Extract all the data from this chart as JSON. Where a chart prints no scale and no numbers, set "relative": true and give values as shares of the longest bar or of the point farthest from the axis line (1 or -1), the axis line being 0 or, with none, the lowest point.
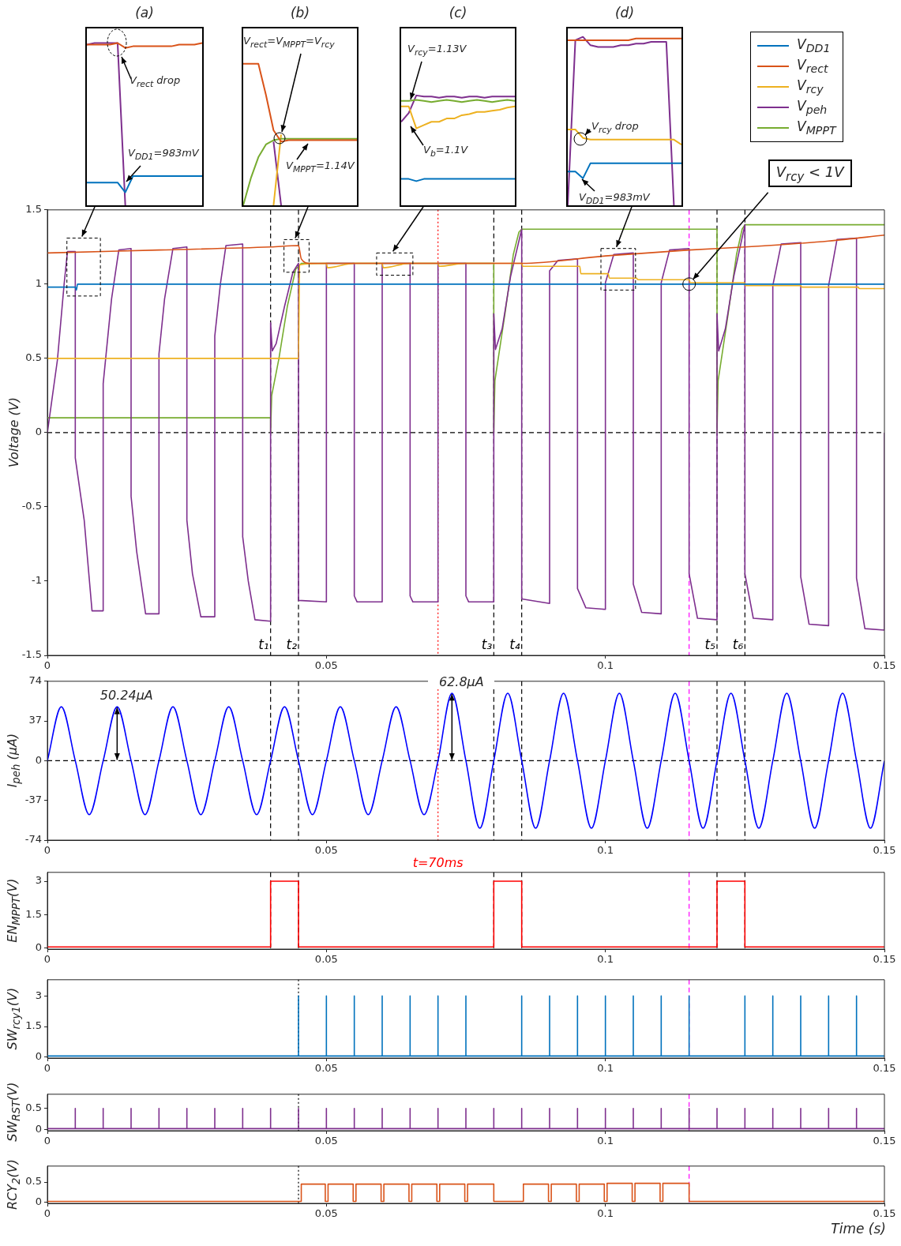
{
  "chart_data": [
    {
      "type": "line",
      "title": "(a)",
      "relative": true,
      "categories": [
        null,
        null,
        null,
        null,
        null,
        null,
        null,
        null,
        null,
        null,
        null,
        null,
        null,
        null,
        null,
        null
      ],
      "series": [
        {
          "color": "#d95319",
          "values": [
            0.99,
            0.99,
            0.99,
            0.99,
            1,
            0.97,
            0.98,
            0.98,
            0.98,
            0.98,
            0.98,
            0.98,
            0.99,
            0.99,
            0.99,
            1
          ]
        },
        {
          "color": "#0072bd",
          "values": [
            0.14,
            0.14,
            0.14,
            0.14,
            0.14,
            0.08,
            0.18,
            0.18,
            0.18,
            0.18,
            0.18,
            0.18,
            0.18,
            0.18,
            0.18,
            0.18
          ]
        },
        {
          "color": "#7e2f8e",
          "values": [
            0.99,
            1,
            1,
            1,
            1,
            0,
            null,
            null,
            null,
            null,
            null,
            null,
            null,
            null,
            null,
            null
          ]
        }
      ],
      "annotations": [
        "V$_{rect}$ drop",
        "V$_{DD1}$=983mV"
      ]
    },
    {
      "type": "line",
      "title": "(b)",
      "relative": true,
      "categories": [
        null,
        null,
        null,
        null,
        null,
        null,
        null,
        null,
        null,
        null,
        null,
        null,
        null,
        null,
        null,
        null
      ],
      "series": [
        {
          "color": "#d95319",
          "values": [
            1,
            1,
            1,
            0.78,
            0.53,
            0.45,
            0.46,
            0.46,
            0.46,
            0.46,
            0.46,
            0.46,
            0.46,
            0.46,
            0.46,
            0.46
          ]
        },
        {
          "color": "#77ac30",
          "values": [
            0,
            0.19,
            0.34,
            0.43,
            0.46,
            0.47,
            0.47,
            0.47,
            0.47,
            0.47,
            0.47,
            0.47,
            0.47,
            0.47,
            0.47,
            0.47
          ]
        },
        {
          "color": "#edb120",
          "values": [
            null,
            null,
            null,
            null,
            0,
            0.5,
            null,
            null,
            null,
            null,
            null,
            null,
            null,
            null,
            null,
            null
          ]
        },
        {
          "color": "#7e2f8e",
          "values": [
            null,
            null,
            null,
            null,
            0.45,
            0,
            null,
            null,
            null,
            null,
            null,
            null,
            null,
            null,
            null,
            null
          ]
        }
      ],
      "annotations": [
        "V$_{rect}$=V$_{MPPT}$=V$_{rcy}$",
        "V$_{MPPT}$=1.14V"
      ]
    },
    {
      "type": "line",
      "title": "(c)",
      "relative": true,
      "categories": [
        null,
        null,
        null,
        null,
        null,
        null,
        null,
        null,
        null,
        null,
        null,
        null,
        null,
        null,
        null,
        null
      ],
      "series": [
        {
          "color": "#0072bd",
          "values": [
            0.24,
            0.24,
            0.22,
            0.24,
            0.24,
            0.24,
            0.24,
            0.24,
            0.24,
            0.24,
            0.24,
            0.24,
            0.24,
            0.24,
            0.24,
            0.24
          ]
        },
        {
          "color": "#edb120",
          "values": [
            0.9,
            0.9,
            0.7,
            0.73,
            0.76,
            0.76,
            0.79,
            0.79,
            0.82,
            0.83,
            0.85,
            0.85,
            0.86,
            0.87,
            0.89,
            0.9
          ]
        },
        {
          "color": "#77ac30",
          "values": [
            0.95,
            0.95,
            0.96,
            0.95,
            0.94,
            0.95,
            0.96,
            0.95,
            0.94,
            0.95,
            0.96,
            0.95,
            0.94,
            0.95,
            0.96,
            0.95
          ]
        },
        {
          "color": "#7e2f8e",
          "values": [
            0.76,
            0.84,
            1,
            0.99,
            0.99,
            0.98,
            0.99,
            0.99,
            0.98,
            0.99,
            0.99,
            0.98,
            0.99,
            0.99,
            0.99,
            0.99
          ]
        }
      ],
      "annotations": [
        "V$_{rcy}$=1.13V",
        "V$_{b}$=1.1V"
      ]
    },
    {
      "type": "line",
      "title": "(d)",
      "relative": true,
      "categories": [
        null,
        null,
        null,
        null,
        null,
        null,
        null,
        null,
        null,
        null,
        null,
        null,
        null,
        null,
        null,
        null
      ],
      "series": [
        {
          "color": "#d95319",
          "values": [
            0.98,
            0.98,
            0.98,
            0.98,
            0.98,
            0.98,
            0.98,
            0.98,
            0.98,
            0.99,
            0.99,
            0.99,
            0.99,
            0.99,
            0.99,
            0.99
          ]
        },
        {
          "color": "#edb120",
          "values": [
            0.45,
            0.45,
            0.4,
            0.39,
            0.39,
            0.39,
            0.39,
            0.39,
            0.39,
            0.39,
            0.39,
            0.39,
            0.39,
            0.39,
            0.39,
            0.36
          ]
        },
        {
          "color": "#0072bd",
          "values": [
            0.2,
            0.2,
            0.16,
            0.25,
            0.25,
            0.25,
            0.25,
            0.25,
            0.25,
            0.25,
            0.25,
            0.25,
            0.25,
            0.25,
            0.25,
            0.25
          ]
        },
        {
          "color": "#7e2f8e",
          "values": [
            0,
            0.98,
            1,
            0.95,
            0.94,
            0.94,
            0.94,
            0.95,
            0.95,
            0.96,
            0.96,
            0.97,
            0.97,
            0.97,
            0,
            null
          ]
        }
      ],
      "annotations": [
        "V$_{rcy}$ drop",
        "V$_{DD1}$=983mV"
      ]
    },
    {
      "type": "line",
      "ylabel": "Voltage (V)",
      "xlim": [
        0,
        0.15
      ],
      "xticks": [
        0,
        0.05,
        0.1,
        0.15
      ],
      "ylim": [
        -1.5,
        1.5
      ],
      "yticks": [
        -1.5,
        -1,
        -0.5,
        0,
        0.5,
        1,
        1.5
      ],
      "legend": "top right",
      "series": [
        {
          "name": "V$_{DD1}$",
          "color": "#0072bd",
          "x": [
            0,
            0.005,
            0.0052,
            0.0054,
            0.15
          ],
          "values": [
            0.98,
            0.98,
            0.96,
            1.0,
            1.0
          ]
        },
        {
          "name": "V$_{rect}$",
          "color": "#d95319",
          "x": [
            0,
            0.02,
            0.04,
            0.045,
            0.0455,
            0.047,
            0.085,
            0.1,
            0.115,
            0.125,
            0.14,
            0.15
          ],
          "values": [
            1.21,
            1.23,
            1.25,
            1.26,
            1.17,
            1.14,
            1.14,
            1.19,
            1.23,
            1.25,
            1.29,
            1.33
          ]
        },
        {
          "name": "V$_{rcy}$",
          "color": "#edb120",
          "x": [
            0,
            0.045,
            0.0452,
            0.05,
            0.0502,
            0.055,
            0.06,
            0.0602,
            0.065,
            0.07,
            0.0702,
            0.075,
            0.08,
            0.085,
            0.0852,
            0.0954,
            0.0956,
            0.1005,
            0.1007,
            0.1056,
            0.1058,
            0.115,
            0.1152,
            0.1249,
            0.1251,
            0.135,
            0.1352,
            0.1453,
            0.1455,
            0.15
          ],
          "values": [
            0.5,
            0.5,
            1.13,
            1.14,
            1.11,
            1.14,
            1.14,
            1.11,
            1.14,
            1.14,
            1.12,
            1.14,
            1.14,
            1.14,
            1.12,
            1.12,
            1.07,
            1.07,
            1.04,
            1.04,
            1.03,
            1.03,
            1.01,
            1.01,
            0.99,
            0.99,
            0.98,
            0.98,
            0.97,
            0.97
          ]
        },
        {
          "name": "V$_{peh}$",
          "color": "#7e2f8e",
          "x": [
            0,
            0.0018,
            0.003,
            0.0036,
            0.005,
            0.005,
            0.0066,
            0.008,
            0.01,
            0.01,
            0.0115,
            0.0128,
            0.015,
            0.015,
            0.016,
            0.0176,
            0.02,
            0.02,
            0.021,
            0.0225,
            0.025,
            0.025,
            0.026,
            0.0275,
            0.03,
            0.03,
            0.031,
            0.032,
            0.035,
            0.035,
            0.036,
            0.0372,
            0.04,
            0.04,
            0.0403,
            0.041,
            0.0425,
            0.044,
            0.045,
            0.045,
            0.05,
            0.05,
            0.055,
            0.055,
            0.0555,
            0.06,
            0.06,
            0.065,
            0.065,
            0.0655,
            0.07,
            0.07,
            0.075,
            0.075,
            0.0755,
            0.08,
            0.08,
            0.0803,
            0.0815,
            0.083,
            0.085,
            0.085,
            0.09,
            0.09,
            0.0915,
            0.095,
            0.095,
            0.0965,
            0.1,
            0.1,
            0.1015,
            0.105,
            0.105,
            0.1065,
            0.11,
            0.11,
            0.1115,
            0.115,
            0.115,
            0.1165,
            0.12,
            0.12,
            0.1203,
            0.1215,
            0.123,
            0.125,
            0.125,
            0.1265,
            0.13,
            0.13,
            0.1315,
            0.135,
            0.135,
            0.1365,
            0.14,
            0.14,
            0.1415,
            0.145,
            0.145,
            0.1465,
            0.15,
            0.15
          ],
          "values": [
            0,
            0.49,
            1.0,
            1.22,
            1.22,
            -0.17,
            -0.59,
            -1.2,
            -1.2,
            0.33,
            0.9,
            1.23,
            1.24,
            -0.43,
            -0.8,
            -1.22,
            -1.22,
            0.53,
            0.9,
            1.24,
            1.25,
            -0.59,
            -0.95,
            -1.24,
            -1.24,
            0.65,
            1.0,
            1.26,
            1.27,
            -0.7,
            -1.0,
            -1.26,
            -1.27,
            0.74,
            0.55,
            0.6,
            0.85,
            1.08,
            1.14,
            -1.13,
            -1.14,
            1.14,
            1.14,
            -1.1,
            -1.14,
            -1.14,
            1.14,
            1.14,
            -1.1,
            -1.14,
            -1.14,
            1.14,
            1.14,
            -1.1,
            -1.14,
            -1.14,
            0.8,
            0.56,
            0.7,
            1.05,
            1.37,
            -1.12,
            -1.15,
            1.09,
            1.16,
            1.17,
            -1.05,
            -1.18,
            -1.19,
            1.01,
            1.2,
            1.21,
            -1.02,
            -1.21,
            -1.22,
            1.01,
            1.23,
            1.24,
            -0.95,
            -1.25,
            -1.26,
            0.8,
            0.55,
            0.7,
            1.05,
            1.4,
            -0.95,
            -1.25,
            -1.26,
            0.99,
            1.27,
            1.28,
            -0.97,
            -1.29,
            -1.3,
            0.99,
            1.3,
            1.31,
            -0.98,
            -1.32,
            -1.33,
            0
          ]
        },
        {
          "name": "V$_{MPPT}$",
          "color": "#77ac30",
          "x": [
            0,
            0.04,
            0.04,
            0.0402,
            0.0415,
            0.043,
            0.0445,
            0.0455,
            0.08,
            0.08,
            0.0802,
            0.082,
            0.0835,
            0.0845,
            0.085,
            0.12,
            0.12,
            0.1202,
            0.122,
            0.1235,
            0.1245,
            0.125,
            0.15
          ],
          "values": [
            0.1,
            0.1,
            0,
            0.25,
            0.5,
            0.85,
            1.1,
            1.14,
            1.14,
            0,
            0.35,
            0.8,
            1.2,
            1.35,
            1.37,
            1.37,
            0,
            0.35,
            0.8,
            1.2,
            1.37,
            1.4,
            1.4
          ]
        }
      ],
      "ref_lines": [
        {
          "axis": "y",
          "value": 0,
          "color": "#000000",
          "line_style": "dashed"
        },
        {
          "axis": "x",
          "value": 0.04,
          "label": "t₁",
          "color": "#000000",
          "line_style": "dashed"
        },
        {
          "axis": "x",
          "value": 0.045,
          "label": "t₂",
          "color": "#000000",
          "line_style": "dashed"
        },
        {
          "axis": "x",
          "value": 0.08,
          "label": "t₃",
          "color": "#000000",
          "line_style": "dashed"
        },
        {
          "axis": "x",
          "value": 0.085,
          "label": "t₄",
          "color": "#000000",
          "line_style": "dashed"
        },
        {
          "axis": "x",
          "value": 0.12,
          "label": "t₅",
          "color": "#000000",
          "line_style": "dashed"
        },
        {
          "axis": "x",
          "value": 0.125,
          "label": "t₆",
          "color": "#000000",
          "line_style": "dashed"
        },
        {
          "axis": "x",
          "value": 0.07,
          "color": "#ff0000",
          "line_style": "dotted"
        },
        {
          "axis": "x",
          "value": 0.115,
          "color": "#ff00ff",
          "line_style": "dashed"
        }
      ],
      "annotations": [
        {
          "text": "V$_{rcy}$ < 1V",
          "x": 0.115,
          "y": 1.0
        }
      ]
    },
    {
      "type": "line",
      "ylabel": "I$_{peh}$ (μA)",
      "xlim": [
        0,
        0.15
      ],
      "xticks": [
        0,
        0.05,
        0.1,
        0.15
      ],
      "ylim": [
        -74,
        74
      ],
      "yticks": [
        -74,
        -37,
        0,
        37,
        74
      ],
      "series": [
        {
          "color": "#0000ff",
          "x": [
            0,
            0.0025,
            0.005,
            0.0075,
            0.01,
            0.0125,
            0.015,
            0.0175,
            0.02,
            0.0225,
            0.025,
            0.0275,
            0.03,
            0.0325,
            0.035,
            0.0375,
            0.04,
            0.0425,
            0.045,
            0.0475,
            0.05,
            0.0525,
            0.055,
            0.0575,
            0.06,
            0.0625,
            0.065,
            0.0675,
            0.07,
            0.0725,
            0.075,
            0.0775,
            0.08,
            0.0825,
            0.085,
            0.0875,
            0.09,
            0.0925,
            0.095,
            0.0975,
            0.1,
            0.1025,
            0.105,
            0.1075,
            0.11,
            0.1125,
            0.115,
            0.1175,
            0.12,
            0.1225,
            0.125,
            0.1275,
            0.13,
            0.1325,
            0.135,
            0.1375,
            0.14,
            0.1425,
            0.145,
            0.1475,
            0.15
          ],
          "values": [
            0,
            50.24,
            0,
            -50.24,
            0,
            50.24,
            0,
            -50.24,
            0,
            50.24,
            0,
            -50.24,
            0,
            50.24,
            0,
            -50.24,
            0,
            50.24,
            0,
            -50.24,
            0,
            50.24,
            0,
            -50.24,
            0,
            50.24,
            0,
            -50.24,
            0,
            62.8,
            0,
            -62.8,
            0,
            62.8,
            0,
            -62.8,
            0,
            62.8,
            0,
            -62.8,
            0,
            62.8,
            0,
            -62.8,
            0,
            62.8,
            0,
            -62.8,
            0,
            62.8,
            0,
            -62.8,
            0,
            62.8,
            0,
            -62.8,
            0,
            62.8,
            0,
            -62.8,
            0
          ]
        }
      ],
      "ref_lines": [
        {
          "axis": "y",
          "value": 0,
          "color": "#000000",
          "line_style": "dashed"
        },
        {
          "axis": "x",
          "value": 0.04,
          "color": "#000000",
          "line_style": "dashed"
        },
        {
          "axis": "x",
          "value": 0.045,
          "color": "#000000",
          "line_style": "dashed"
        },
        {
          "axis": "x",
          "value": 0.08,
          "color": "#000000",
          "line_style": "dashed"
        },
        {
          "axis": "x",
          "value": 0.085,
          "color": "#000000",
          "line_style": "dashed"
        },
        {
          "axis": "x",
          "value": 0.12,
          "color": "#000000",
          "line_style": "dashed"
        },
        {
          "axis": "x",
          "value": 0.125,
          "color": "#000000",
          "line_style": "dashed"
        },
        {
          "axis": "x",
          "value": 0.07,
          "label": "t=70ms",
          "color": "#ff0000",
          "line_style": "dotted"
        },
        {
          "axis": "x",
          "value": 0.115,
          "color": "#ff00ff",
          "line_style": "dashed"
        }
      ],
      "annotations": [
        {
          "text": "50.24μA",
          "x": 0.0125,
          "y": 50.24
        },
        {
          "text": "62.8μA",
          "x": 0.0725,
          "y": 62.8
        }
      ]
    },
    {
      "type": "line",
      "ylabel": "EN$_{MPPT}$(V)",
      "xlim": [
        0,
        0.15
      ],
      "xticks": [
        0,
        0.05,
        0.1,
        0.15
      ],
      "ylim": [
        -0.05,
        3.4
      ],
      "yticks": [
        0,
        1.5,
        3
      ],
      "series": [
        {
          "color": "#ff0000",
          "x": [
            0,
            0.04,
            0.04,
            0.045,
            0.045,
            0.08,
            0.08,
            0.085,
            0.085,
            0.12,
            0.12,
            0.125,
            0.125,
            0.15
          ],
          "values": [
            0.05,
            0.05,
            3,
            3,
            0.05,
            0.05,
            3,
            3,
            0.05,
            0.05,
            3,
            3,
            0.05,
            0.05
          ]
        }
      ],
      "ref_lines": [
        {
          "axis": "x",
          "value": 0.04,
          "color": "#000000",
          "line_style": "dashed"
        },
        {
          "axis": "x",
          "value": 0.045,
          "color": "#000000",
          "line_style": "dashed"
        },
        {
          "axis": "x",
          "value": 0.08,
          "color": "#000000",
          "line_style": "dashed"
        },
        {
          "axis": "x",
          "value": 0.085,
          "color": "#000000",
          "line_style": "dashed"
        },
        {
          "axis": "x",
          "value": 0.12,
          "color": "#000000",
          "line_style": "dashed"
        },
        {
          "axis": "x",
          "value": 0.125,
          "color": "#000000",
          "line_style": "dashed"
        },
        {
          "axis": "x",
          "value": 0.115,
          "color": "#ff00ff",
          "line_style": "dashed"
        }
      ]
    },
    {
      "type": "line",
      "ylabel": "SW$_{rcy1}$(V)",
      "xlim": [
        0,
        0.15
      ],
      "xticks": [
        0,
        0.05,
        0.1,
        0.15
      ],
      "ylim": [
        -0.05,
        3.8
      ],
      "yticks": [
        0,
        1.5,
        3
      ],
      "series": [
        {
          "color": "#0072bd",
          "x": [
            0,
            0.045,
            0.045,
            0.045,
            0.05,
            0.05,
            0.05,
            0.055,
            0.055,
            0.055,
            0.06,
            0.06,
            0.06,
            0.065,
            0.065,
            0.065,
            0.07,
            0.07,
            0.07,
            0.075,
            0.075,
            0.075,
            0.085,
            0.085,
            0.085,
            0.09,
            0.09,
            0.09,
            0.095,
            0.095,
            0.095,
            0.1,
            0.1,
            0.1,
            0.105,
            0.105,
            0.105,
            0.11,
            0.11,
            0.11,
            0.115,
            0.115,
            0.115,
            0.125,
            0.125,
            0.125,
            0.13,
            0.13,
            0.13,
            0.135,
            0.135,
            0.135,
            0.14,
            0.14,
            0.14,
            0.145,
            0.145,
            0.145,
            0.15
          ],
          "values": [
            0.05,
            0.05,
            3,
            0.05,
            0.05,
            3,
            0.05,
            0.05,
            3,
            0.05,
            0.05,
            3,
            0.05,
            0.05,
            3,
            0.05,
            0.05,
            3,
            0.05,
            0.05,
            3,
            0.05,
            0.05,
            3,
            0.05,
            0.05,
            3,
            0.05,
            0.05,
            3,
            0.05,
            0.05,
            3,
            0.05,
            0.05,
            3,
            0.05,
            0.05,
            3,
            0.05,
            0.05,
            3,
            0.05,
            0.05,
            3,
            0.05,
            0.05,
            3,
            0.05,
            0.05,
            3,
            0.05,
            0.05,
            3,
            0.05,
            0.05,
            3,
            0.05,
            0.05
          ]
        }
      ],
      "ref_lines": [
        {
          "axis": "x",
          "value": 0.045,
          "color": "#000000",
          "line_style": "dotted"
        },
        {
          "axis": "x",
          "value": 0.115,
          "color": "#ff00ff",
          "line_style": "dashed"
        }
      ]
    },
    {
      "type": "line",
      "ylabel": "SW$_{RST}$(V)",
      "xlim": [
        0,
        0.15
      ],
      "xticks": [
        0,
        0.05,
        0.1,
        0.15
      ],
      "ylim": [
        -0.03,
        0.84
      ],
      "yticks": [
        0,
        0.5
      ],
      "series": [
        {
          "color": "#7e2f8e",
          "x": [
            0,
            0.005,
            0.005,
            0.005,
            0.01,
            0.01,
            0.01,
            0.015,
            0.015,
            0.015,
            0.02,
            0.02,
            0.02,
            0.025,
            0.025,
            0.025,
            0.03,
            0.03,
            0.03,
            0.035,
            0.035,
            0.035,
            0.04,
            0.04,
            0.04,
            0.045,
            0.045,
            0.045,
            0.05,
            0.05,
            0.05,
            0.055,
            0.055,
            0.055,
            0.06,
            0.06,
            0.06,
            0.065,
            0.065,
            0.065,
            0.07,
            0.07,
            0.07,
            0.075,
            0.075,
            0.075,
            0.08,
            0.08,
            0.08,
            0.085,
            0.085,
            0.085,
            0.09,
            0.09,
            0.09,
            0.095,
            0.095,
            0.095,
            0.1,
            0.1,
            0.1,
            0.105,
            0.105,
            0.105,
            0.11,
            0.11,
            0.11,
            0.115,
            0.115,
            0.115,
            0.12,
            0.12,
            0.12,
            0.125,
            0.125,
            0.125,
            0.13,
            0.13,
            0.13,
            0.135,
            0.135,
            0.135,
            0.14,
            0.14,
            0.14,
            0.145,
            0.145,
            0.145,
            0.15
          ],
          "values": [
            0.02,
            0.02,
            0.5,
            0.02,
            0.02,
            0.5,
            0.02,
            0.02,
            0.5,
            0.02,
            0.02,
            0.5,
            0.02,
            0.02,
            0.5,
            0.02,
            0.02,
            0.5,
            0.02,
            0.02,
            0.5,
            0.02,
            0.02,
            0.5,
            0.02,
            0.02,
            0.5,
            0.02,
            0.02,
            0.5,
            0.02,
            0.02,
            0.5,
            0.02,
            0.02,
            0.5,
            0.02,
            0.02,
            0.5,
            0.02,
            0.02,
            0.5,
            0.02,
            0.02,
            0.5,
            0.02,
            0.02,
            0.5,
            0.02,
            0.02,
            0.5,
            0.02,
            0.02,
            0.5,
            0.02,
            0.02,
            0.5,
            0.02,
            0.02,
            0.5,
            0.02,
            0.02,
            0.5,
            0.02,
            0.02,
            0.5,
            0.02,
            0.02,
            0.5,
            0.02,
            0.02,
            0.5,
            0.02,
            0.02,
            0.5,
            0.02,
            0.02,
            0.5,
            0.02,
            0.02,
            0.5,
            0.02,
            0.02,
            0.5,
            0.02,
            0.02,
            0.5,
            0.02,
            0.02
          ]
        }
      ],
      "ref_lines": [
        {
          "axis": "x",
          "value": 0.045,
          "color": "#000000",
          "line_style": "dotted"
        },
        {
          "axis": "x",
          "value": 0.115,
          "color": "#ff00ff",
          "line_style": "dashed"
        }
      ]
    },
    {
      "type": "line",
      "ylabel": "RCY$_{2}$(V)",
      "xlabel": "Time (s)",
      "xlim": [
        0,
        0.15
      ],
      "xticks": [
        0,
        0.05,
        0.1,
        0.15
      ],
      "ylim": [
        -0.03,
        0.9
      ],
      "yticks": [
        0,
        0.5
      ],
      "series": [
        {
          "color": "#d95319",
          "x": [
            0,
            0.0455,
            0.0455,
            0.0498,
            0.0498,
            0.0503,
            0.0503,
            0.0548,
            0.0548,
            0.0553,
            0.0553,
            0.0598,
            0.0598,
            0.0603,
            0.0603,
            0.0648,
            0.0648,
            0.0653,
            0.0653,
            0.0698,
            0.0698,
            0.0703,
            0.0703,
            0.0748,
            0.0748,
            0.0753,
            0.0753,
            0.08,
            0.08,
            0.0853,
            0.0853,
            0.0898,
            0.0898,
            0.0903,
            0.0903,
            0.0948,
            0.0948,
            0.0953,
            0.0953,
            0.0998,
            0.0998,
            0.1003,
            0.1003,
            0.1048,
            0.1048,
            0.1053,
            0.1053,
            0.1098,
            0.1098,
            0.1103,
            0.1103,
            0.115,
            0.115,
            0.15
          ],
          "values": [
            0.02,
            0.02,
            0.45,
            0.45,
            0.02,
            0.02,
            0.45,
            0.45,
            0.02,
            0.02,
            0.45,
            0.45,
            0.02,
            0.02,
            0.45,
            0.45,
            0.02,
            0.02,
            0.45,
            0.45,
            0.02,
            0.02,
            0.45,
            0.45,
            0.02,
            0.02,
            0.45,
            0.45,
            0.02,
            0.02,
            0.45,
            0.45,
            0.02,
            0.02,
            0.45,
            0.45,
            0.02,
            0.02,
            0.45,
            0.45,
            0.02,
            0.02,
            0.47,
            0.47,
            0.02,
            0.02,
            0.47,
            0.47,
            0.02,
            0.02,
            0.47,
            0.47,
            0.02,
            0.02
          ]
        }
      ],
      "ref_lines": [
        {
          "axis": "x",
          "value": 0.045,
          "color": "#000000",
          "line_style": "dotted"
        },
        {
          "axis": "x",
          "value": 0.115,
          "color": "#ff00ff",
          "line_style": "dashed"
        }
      ]
    }
  ]
}
